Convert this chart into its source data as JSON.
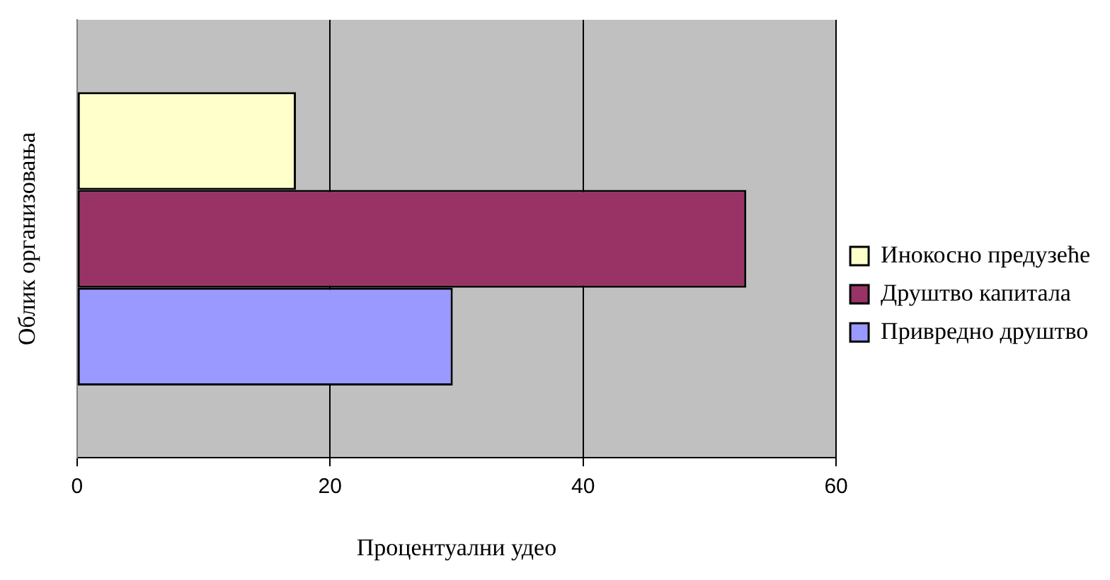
{
  "chart_data": {
    "type": "bar",
    "orientation": "horizontal",
    "xlabel": "Процентуални удео",
    "ylabel": "Облик организовања",
    "categories": [
      null
    ],
    "series": [
      {
        "name": "Инокосно предузеће",
        "color": "#ffffcc",
        "values": [
          17.3
        ]
      },
      {
        "name": "Друштво капитала",
        "color": "#993366",
        "values": [
          52.9
        ]
      },
      {
        "name": "Привредно друштво",
        "color": "#9999ff",
        "values": [
          29.7
        ]
      }
    ],
    "xlim": [
      0,
      60
    ],
    "xticks": [
      0,
      20,
      40,
      60
    ],
    "grid": "x",
    "legend": "right"
  }
}
